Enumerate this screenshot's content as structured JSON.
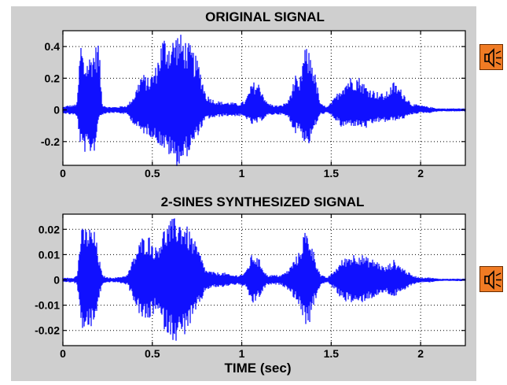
{
  "colors": {
    "figure_background": "#cfcfcf",
    "axes_background": "#ffffff",
    "signal": "#1010ff",
    "grid": "#000000",
    "speaker_button": "#f07b24"
  },
  "speaker_buttons": [
    {
      "icon": "speaker-icon"
    },
    {
      "icon": "speaker-icon"
    }
  ],
  "chart_data": [
    {
      "type": "line",
      "title": "ORIGINAL SIGNAL",
      "xlabel": "",
      "ylabel": "",
      "xlim": [
        0,
        2.25
      ],
      "ylim": [
        -0.35,
        0.5
      ],
      "grid": true,
      "xticks": [
        0,
        0.5,
        1,
        1.5,
        2
      ],
      "xtick_labels": [
        "0",
        "0.5",
        "1",
        "1.5",
        "2"
      ],
      "yticks": [
        0.4,
        0.2,
        0,
        -0.2
      ],
      "ytick_labels": [
        "0.4",
        "0.2",
        "0",
        "-0.2"
      ],
      "series": [
        {
          "envelope": {
            "time": [
              0,
              0.03,
              0.06,
              0.08,
              0.1,
              0.12,
              0.15,
              0.18,
              0.2,
              0.22,
              0.25,
              0.3,
              0.36,
              0.4,
              0.44,
              0.48,
              0.52,
              0.56,
              0.6,
              0.64,
              0.68,
              0.72,
              0.76,
              0.8,
              0.85,
              0.9,
              0.94,
              0.98,
              1.02,
              1.06,
              1.1,
              1.14,
              1.18,
              1.22,
              1.26,
              1.3,
              1.32,
              1.35,
              1.38,
              1.4,
              1.44,
              1.48,
              1.52,
              1.56,
              1.6,
              1.65,
              1.7,
              1.75,
              1.8,
              1.85,
              1.9,
              1.95,
              2.0,
              2.05,
              2.1,
              2.15,
              2.2,
              2.25
            ],
            "upper": [
              0.02,
              0.03,
              0.03,
              0.05,
              0.46,
              0.3,
              0.35,
              0.4,
              0.45,
              0.04,
              0.02,
              0.02,
              0.03,
              0.1,
              0.24,
              0.2,
              0.28,
              0.48,
              0.44,
              0.5,
              0.46,
              0.4,
              0.3,
              0.1,
              0.06,
              0.05,
              0.05,
              0.04,
              0.06,
              0.18,
              0.17,
              0.05,
              0.03,
              0.03,
              0.06,
              0.22,
              0.15,
              0.4,
              0.37,
              0.3,
              0.04,
              0.02,
              0.08,
              0.16,
              0.21,
              0.22,
              0.15,
              0.12,
              0.1,
              0.18,
              0.12,
              0.04,
              0.03,
              0.02,
              0.01,
              0.01,
              0.01,
              0.01
            ],
            "lower": [
              -0.02,
              -0.03,
              -0.03,
              -0.05,
              -0.25,
              -0.27,
              -0.28,
              -0.26,
              -0.05,
              -0.03,
              -0.02,
              -0.02,
              -0.03,
              -0.1,
              -0.15,
              -0.16,
              -0.2,
              -0.25,
              -0.3,
              -0.36,
              -0.32,
              -0.25,
              -0.15,
              -0.06,
              -0.05,
              -0.04,
              -0.04,
              -0.04,
              -0.05,
              -0.1,
              -0.08,
              -0.04,
              -0.03,
              -0.03,
              -0.05,
              -0.15,
              -0.12,
              -0.21,
              -0.22,
              -0.14,
              -0.03,
              -0.02,
              -0.06,
              -0.12,
              -0.1,
              -0.11,
              -0.12,
              -0.08,
              -0.08,
              -0.07,
              -0.06,
              -0.03,
              -0.02,
              -0.02,
              -0.01,
              -0.01,
              -0.01,
              -0.01
            ]
          }
        }
      ]
    },
    {
      "type": "line",
      "title": "2-SINES SYNTHESIZED SIGNAL",
      "xlabel": "TIME (sec)",
      "ylabel": "",
      "xlim": [
        0,
        2.25
      ],
      "ylim": [
        -0.026,
        0.026
      ],
      "grid": true,
      "xticks": [
        0,
        0.5,
        1,
        1.5,
        2
      ],
      "xtick_labels": [
        "0",
        "0.5",
        "1",
        "1.5",
        "2"
      ],
      "yticks": [
        0.02,
        0.01,
        0,
        -0.01,
        -0.02
      ],
      "ytick_labels": [
        "0.02",
        "0.01",
        "0",
        "-0.01",
        "-0.02"
      ],
      "series": [
        {
          "envelope": {
            "time": [
              0,
              0.03,
              0.06,
              0.08,
              0.1,
              0.12,
              0.15,
              0.18,
              0.2,
              0.22,
              0.25,
              0.3,
              0.36,
              0.4,
              0.44,
              0.48,
              0.52,
              0.56,
              0.6,
              0.64,
              0.68,
              0.72,
              0.76,
              0.8,
              0.85,
              0.9,
              0.94,
              0.98,
              1.02,
              1.06,
              1.1,
              1.14,
              1.18,
              1.22,
              1.26,
              1.3,
              1.32,
              1.35,
              1.38,
              1.4,
              1.44,
              1.48,
              1.52,
              1.56,
              1.6,
              1.65,
              1.7,
              1.75,
              1.8,
              1.85,
              1.9,
              1.95,
              2.0,
              2.05,
              2.1,
              2.15,
              2.2,
              2.25
            ],
            "upper": [
              0.0008,
              0.001,
              0.001,
              0.002,
              0.02,
              0.021,
              0.021,
              0.019,
              0.01,
              0.002,
              0.001,
              0.001,
              0.002,
              0.01,
              0.017,
              0.018,
              0.013,
              0.02,
              0.024,
              0.025,
              0.023,
              0.018,
              0.012,
              0.004,
              0.003,
              0.003,
              0.002,
              0.002,
              0.003,
              0.011,
              0.008,
              0.002,
              0.002,
              0.002,
              0.004,
              0.009,
              0.011,
              0.02,
              0.018,
              0.012,
              0.002,
              0.001,
              0.004,
              0.008,
              0.01,
              0.011,
              0.009,
              0.008,
              0.005,
              0.008,
              0.005,
              0.002,
              0.001,
              0.001,
              0.0005,
              0.0005,
              0.0005,
              0.0005
            ],
            "lower": [
              -0.0008,
              -0.001,
              -0.001,
              -0.002,
              -0.018,
              -0.021,
              -0.02,
              -0.018,
              -0.008,
              -0.002,
              -0.001,
              -0.001,
              -0.002,
              -0.009,
              -0.016,
              -0.017,
              -0.012,
              -0.019,
              -0.023,
              -0.025,
              -0.022,
              -0.017,
              -0.011,
              -0.004,
              -0.003,
              -0.003,
              -0.002,
              -0.002,
              -0.003,
              -0.01,
              -0.007,
              -0.002,
              -0.002,
              -0.002,
              -0.004,
              -0.008,
              -0.01,
              -0.018,
              -0.017,
              -0.011,
              -0.002,
              -0.001,
              -0.004,
              -0.008,
              -0.009,
              -0.01,
              -0.008,
              -0.007,
              -0.005,
              -0.007,
              -0.005,
              -0.002,
              -0.001,
              -0.001,
              -0.0005,
              -0.0005,
              -0.0005,
              -0.0005
            ]
          }
        }
      ]
    }
  ]
}
